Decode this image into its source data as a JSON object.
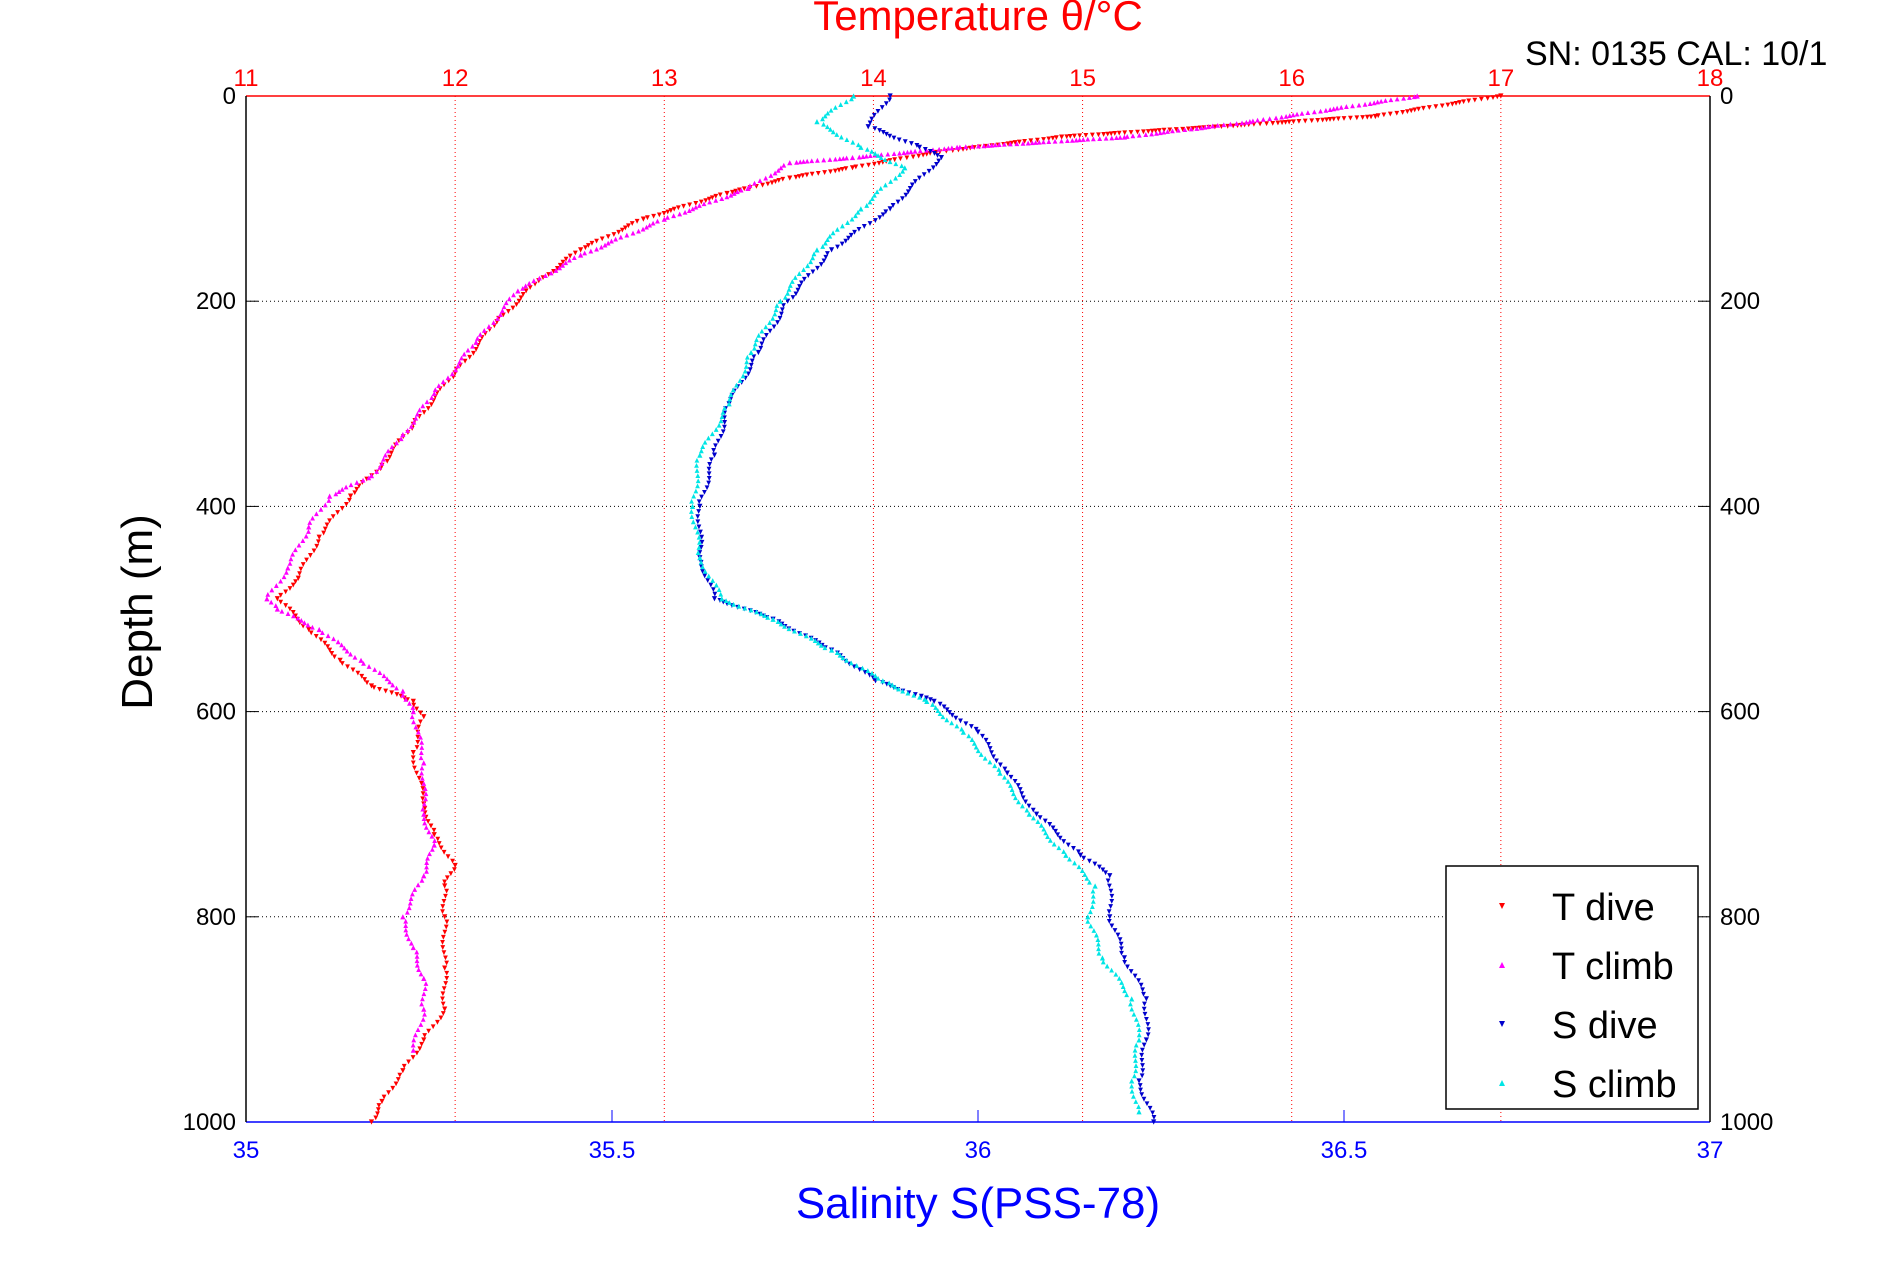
{
  "header": {
    "sn_cal": "SN: 0135  CAL: 10/1"
  },
  "chart_data": {
    "type": "scatter",
    "title": "Temperature θ/°C",
    "xlabel": "Salinity S(PSS-78)",
    "ylabel": "Depth (m)",
    "y_axis": {
      "range": [
        0,
        1000
      ],
      "reversed": true,
      "ticks": [
        "0",
        "200",
        "400",
        "600",
        "800",
        "1000"
      ]
    },
    "x_top": {
      "range": [
        11,
        18
      ],
      "ticks": [
        "11",
        "12",
        "13",
        "14",
        "15",
        "16",
        "17",
        "18"
      ],
      "color": "#ff0000",
      "grid": true
    },
    "x_bottom": {
      "range": [
        35,
        37
      ],
      "ticks": [
        "35",
        "35.5",
        "36",
        "36.5",
        "37"
      ],
      "color": "#0000ff"
    },
    "grid": {
      "horizontal": true,
      "vertical_top_axis": true
    },
    "legend": {
      "position": "bottom-right"
    },
    "series": [
      {
        "name": "T dive",
        "axis": "top",
        "color": "#ff0000",
        "marker": "triangle-down",
        "points": [
          [
            17.0,
            0
          ],
          [
            16.4,
            20
          ],
          [
            14.9,
            40
          ],
          [
            14.3,
            55
          ],
          [
            13.9,
            70
          ],
          [
            13.6,
            80
          ],
          [
            13.3,
            95
          ],
          [
            12.9,
            120
          ],
          [
            12.6,
            150
          ],
          [
            12.4,
            180
          ],
          [
            12.2,
            220
          ],
          [
            12.0,
            270
          ],
          [
            11.8,
            320
          ],
          [
            11.65,
            360
          ],
          [
            11.5,
            390
          ],
          [
            11.35,
            430
          ],
          [
            11.25,
            470
          ],
          [
            11.15,
            490
          ],
          [
            11.3,
            520
          ],
          [
            11.45,
            550
          ],
          [
            11.6,
            575
          ],
          [
            11.8,
            590
          ],
          [
            11.85,
            605
          ],
          [
            11.8,
            640
          ],
          [
            11.85,
            690
          ],
          [
            11.9,
            720
          ],
          [
            12.0,
            750
          ],
          [
            11.95,
            770
          ],
          [
            11.95,
            800
          ],
          [
            11.95,
            850
          ],
          [
            11.95,
            890
          ],
          [
            11.85,
            920
          ],
          [
            11.75,
            950
          ],
          [
            11.65,
            980
          ],
          [
            11.6,
            1000
          ]
        ]
      },
      {
        "name": "T climb",
        "axis": "top",
        "color": "#ff00ff",
        "marker": "triangle-up",
        "points": [
          [
            16.6,
            0
          ],
          [
            15.8,
            25
          ],
          [
            15.2,
            40
          ],
          [
            14.4,
            50
          ],
          [
            13.9,
            60
          ],
          [
            13.6,
            65
          ],
          [
            13.4,
            90
          ],
          [
            13.0,
            120
          ],
          [
            12.6,
            155
          ],
          [
            12.3,
            190
          ],
          [
            12.1,
            240
          ],
          [
            11.9,
            290
          ],
          [
            11.75,
            330
          ],
          [
            11.6,
            370
          ],
          [
            11.4,
            390
          ],
          [
            11.3,
            420
          ],
          [
            11.2,
            460
          ],
          [
            11.1,
            490
          ],
          [
            11.15,
            500
          ],
          [
            11.35,
            520
          ],
          [
            11.55,
            550
          ],
          [
            11.75,
            580
          ],
          [
            11.8,
            600
          ],
          [
            11.85,
            650
          ],
          [
            11.85,
            700
          ],
          [
            11.9,
            730
          ],
          [
            11.85,
            760
          ],
          [
            11.75,
            800
          ],
          [
            11.8,
            830
          ],
          [
            11.85,
            860
          ],
          [
            11.85,
            890
          ],
          [
            11.8,
            930
          ]
        ]
      },
      {
        "name": "S dive",
        "axis": "bottom",
        "color": "#0000cc",
        "marker": "triangle-down",
        "points": [
          [
            35.88,
            0
          ],
          [
            35.85,
            30
          ],
          [
            35.92,
            50
          ],
          [
            35.95,
            60
          ],
          [
            35.88,
            110
          ],
          [
            35.8,
            150
          ],
          [
            35.74,
            200
          ],
          [
            35.7,
            250
          ],
          [
            35.66,
            300
          ],
          [
            35.64,
            350
          ],
          [
            35.62,
            400
          ],
          [
            35.62,
            450
          ],
          [
            35.64,
            490
          ],
          [
            35.72,
            510
          ],
          [
            35.8,
            540
          ],
          [
            35.86,
            570
          ],
          [
            35.94,
            590
          ],
          [
            36.0,
            620
          ],
          [
            36.04,
            660
          ],
          [
            36.08,
            700
          ],
          [
            36.14,
            740
          ],
          [
            36.18,
            760
          ],
          [
            36.18,
            800
          ],
          [
            36.2,
            840
          ],
          [
            36.23,
            880
          ],
          [
            36.23,
            920
          ],
          [
            36.22,
            960
          ],
          [
            36.24,
            1000
          ]
        ]
      },
      {
        "name": "S climb",
        "axis": "bottom",
        "color": "#00e5e5",
        "marker": "triangle-up",
        "points": [
          [
            35.83,
            0
          ],
          [
            35.78,
            25
          ],
          [
            35.84,
            50
          ],
          [
            35.9,
            70
          ],
          [
            35.84,
            110
          ],
          [
            35.78,
            150
          ],
          [
            35.73,
            200
          ],
          [
            35.69,
            250
          ],
          [
            35.66,
            300
          ],
          [
            35.62,
            350
          ],
          [
            35.61,
            400
          ],
          [
            35.62,
            450
          ],
          [
            35.65,
            490
          ],
          [
            35.72,
            510
          ],
          [
            35.8,
            540
          ],
          [
            35.87,
            570
          ],
          [
            35.93,
            590
          ],
          [
            35.98,
            620
          ],
          [
            36.03,
            660
          ],
          [
            36.07,
            700
          ],
          [
            36.12,
            740
          ],
          [
            36.16,
            770
          ],
          [
            36.15,
            800
          ],
          [
            36.17,
            840
          ],
          [
            36.21,
            880
          ],
          [
            36.22,
            920
          ],
          [
            36.21,
            960
          ],
          [
            36.22,
            990
          ]
        ]
      }
    ]
  }
}
